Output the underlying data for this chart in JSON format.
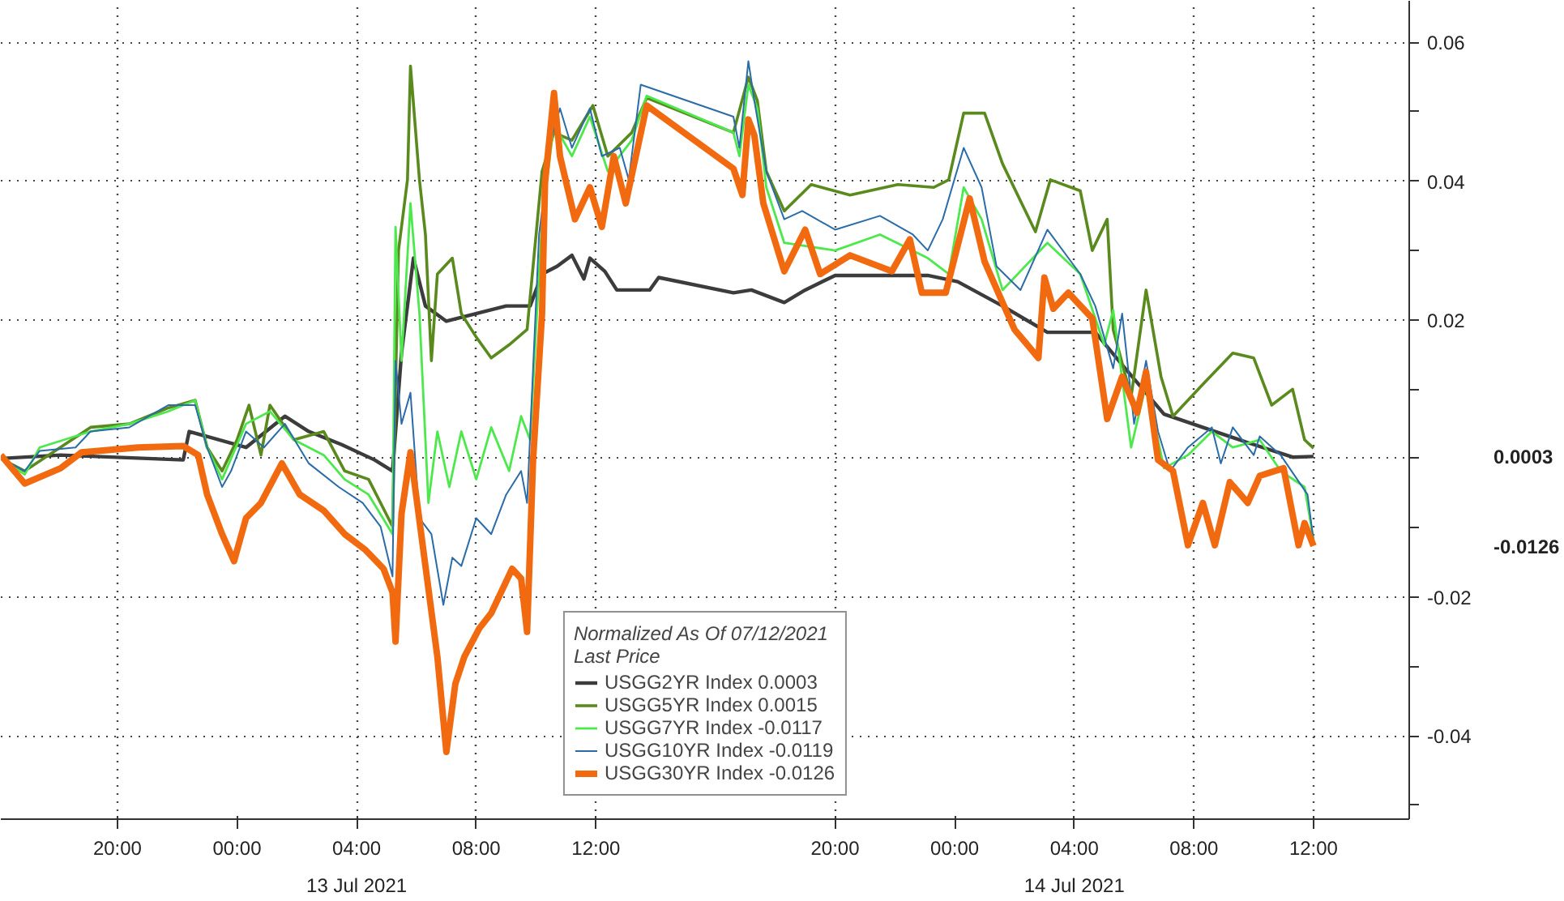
{
  "chart_data": {
    "type": "line",
    "legend_title": "Normalized As Of 07/12/2021\nLast Price",
    "legend": "bottom",
    "grid": true,
    "line_style": "solid",
    "xlim": [
      "2021-07-12T16:06",
      "2021-07-14T15:12"
    ],
    "xticks": [
      {
        "value": "2021-07-12T20:00",
        "label": "20:00"
      },
      {
        "value": "2021-07-13T00:00",
        "label": "00:00"
      },
      {
        "value": "2021-07-13T04:00",
        "label": "04:00"
      },
      {
        "value": "2021-07-13T08:00",
        "label": "08:00"
      },
      {
        "value": "2021-07-13T12:00",
        "label": "12:00"
      },
      {
        "value": "2021-07-13T20:00",
        "label": "20:00"
      },
      {
        "value": "2021-07-14T00:00",
        "label": "00:00"
      },
      {
        "value": "2021-07-14T04:00",
        "label": "04:00"
      },
      {
        "value": "2021-07-14T08:00",
        "label": "08:00"
      },
      {
        "value": "2021-07-14T12:00",
        "label": "12:00"
      }
    ],
    "ylim": [
      -0.052,
      0.066
    ],
    "yticks": [
      {
        "value": -0.05,
        "label": null
      },
      {
        "value": -0.04,
        "label": "-0.04"
      },
      {
        "value": -0.03,
        "label": null
      },
      {
        "value": -0.02,
        "label": "-0.02"
      },
      {
        "value": -0.01,
        "label": null
      },
      {
        "value": 0,
        "label": null
      },
      {
        "value": 0.01,
        "label": null
      },
      {
        "value": 0.02,
        "label": "0.02"
      },
      {
        "value": 0.03,
        "label": null
      },
      {
        "value": 0.04,
        "label": "0.04"
      },
      {
        "value": 0.05,
        "label": null
      },
      {
        "value": 0.06,
        "label": "0.06"
      }
    ],
    "annotations": [
      "13 Jul 2021",
      "14 Jul 2021",
      "0.0003",
      "-0.0126"
    ],
    "series": [
      {
        "name": "USGG2YR Index 0.0003",
        "color": "#3c3c3c",
        "x": [
          "2021-07-12T16:06",
          "2021-07-12T18:06",
          "2021-07-12T22:12",
          "2021-07-12T22:24",
          "2021-07-13T00:18",
          "2021-07-13T01:36",
          "2021-07-13T02:24",
          "2021-07-13T03:30",
          "2021-07-13T04:36",
          "2021-07-13T05:12",
          "2021-07-13T05:30",
          "2021-07-13T05:54",
          "2021-07-13T06:18",
          "2021-07-13T07:00",
          "2021-07-13T09:00",
          "2021-07-13T09:48",
          "2021-07-13T10:12",
          "2021-07-13T10:42",
          "2021-07-13T11:12",
          "2021-07-13T11:36",
          "2021-07-13T11:48",
          "2021-07-13T12:18",
          "2021-07-13T12:42",
          "2021-07-13T13:48",
          "2021-07-13T14:06",
          "2021-07-13T16:36",
          "2021-07-13T17:12",
          "2021-07-13T18:18",
          "2021-07-13T19:00",
          "2021-07-13T20:00",
          "2021-07-13T23:06",
          "2021-07-14T00:06",
          "2021-07-14T01:36",
          "2021-07-14T03:06",
          "2021-07-14T04:42",
          "2021-07-14T05:42",
          "2021-07-14T07:00",
          "2021-07-14T09:48",
          "2021-07-14T11:18",
          "2021-07-14T12:00"
        ],
        "values": [
          0,
          0.0005,
          -0.0002,
          0.0039,
          0.0016,
          0.0061,
          0.0039,
          0.002,
          -0.0002,
          -0.0018,
          0.0152,
          0.0289,
          0.022,
          0.0198,
          0.022,
          0.022,
          0.0266,
          0.0277,
          0.0293,
          0.0259,
          0.0289,
          0.027,
          0.0243,
          0.0243,
          0.0261,
          0.0239,
          0.0243,
          0.0225,
          0.0243,
          0.0264,
          0.0264,
          0.0255,
          0.022,
          0.0182,
          0.0182,
          0.013,
          0.0064,
          0.0023,
          0.0002,
          0.0003
        ]
      },
      {
        "name": "USGG5YR Index 0.0015",
        "color": "#5a8a1e",
        "x": [
          "2021-07-12T16:06",
          "2021-07-12T16:54",
          "2021-07-12T19:06",
          "2021-07-12T20:24",
          "2021-07-12T21:42",
          "2021-07-12T22:36",
          "2021-07-12T23:00",
          "2021-07-12T23:30",
          "2021-07-13T00:00",
          "2021-07-13T00:24",
          "2021-07-13T00:48",
          "2021-07-13T01:06",
          "2021-07-13T01:54",
          "2021-07-13T02:54",
          "2021-07-13T03:36",
          "2021-07-13T04:24",
          "2021-07-13T05:12",
          "2021-07-13T05:24",
          "2021-07-13T05:42",
          "2021-07-13T05:48",
          "2021-07-13T06:06",
          "2021-07-13T06:18",
          "2021-07-13T06:30",
          "2021-07-13T06:42",
          "2021-07-13T07:12",
          "2021-07-13T07:30",
          "2021-07-13T08:00",
          "2021-07-13T08:30",
          "2021-07-13T09:06",
          "2021-07-13T09:42",
          "2021-07-13T10:12",
          "2021-07-13T10:36",
          "2021-07-13T11:12",
          "2021-07-13T11:54",
          "2021-07-13T12:24",
          "2021-07-13T13:12",
          "2021-07-13T13:42",
          "2021-07-13T16:36",
          "2021-07-13T17:06",
          "2021-07-13T17:24",
          "2021-07-13T17:42",
          "2021-07-13T18:18",
          "2021-07-13T19:12",
          "2021-07-13T20:30",
          "2021-07-13T22:06",
          "2021-07-13T23:18",
          "2021-07-13T23:48",
          "2021-07-14T00:18",
          "2021-07-14T01:00",
          "2021-07-14T01:36",
          "2021-07-14T02:42",
          "2021-07-14T03:12",
          "2021-07-14T04:12",
          "2021-07-14T04:36",
          "2021-07-14T05:06",
          "2021-07-14T05:18",
          "2021-07-14T05:54",
          "2021-07-14T06:24",
          "2021-07-14T06:54",
          "2021-07-14T07:18",
          "2021-07-14T08:18",
          "2021-07-14T09:18",
          "2021-07-14T10:00",
          "2021-07-14T10:36",
          "2021-07-14T11:18",
          "2021-07-14T11:42",
          "2021-07-14T12:00"
        ],
        "values": [
          0,
          -0.0018,
          0.0045,
          0.005,
          0.0073,
          0.0084,
          0.0016,
          -0.0018,
          0.0027,
          0.0077,
          0.0005,
          0.0077,
          0.0027,
          0.0039,
          -0.0018,
          -0.003,
          -0.0098,
          0.03,
          0.0402,
          0.0566,
          0.0402,
          0.0323,
          0.0141,
          0.0266,
          0.0289,
          0.0209,
          0.0175,
          0.0145,
          0.0164,
          0.0186,
          0.0414,
          0.047,
          0.0459,
          0.0509,
          0.0436,
          0.047,
          0.052,
          0.047,
          0.055,
          0.0516,
          0.0414,
          0.0357,
          0.0395,
          0.038,
          0.0395,
          0.0391,
          0.0402,
          0.0498,
          0.0498,
          0.0425,
          0.0327,
          0.0402,
          0.0386,
          0.03,
          0.0345,
          0.0186,
          0.0089,
          0.0243,
          0.0118,
          0.0061,
          0.0107,
          0.0152,
          0.0145,
          0.0077,
          0.01,
          0.0027,
          0.0015
        ]
      },
      {
        "name": "USGG7YR Index -0.0117",
        "color": "#4ce84c",
        "x": [
          "2021-07-12T16:06",
          "2021-07-12T16:54",
          "2021-07-12T17:24",
          "2021-07-12T19:06",
          "2021-07-12T20:24",
          "2021-07-12T21:42",
          "2021-07-12T22:36",
          "2021-07-12T23:00",
          "2021-07-12T23:30",
          "2021-07-13T00:18",
          "2021-07-13T01:06",
          "2021-07-13T01:54",
          "2021-07-13T02:54",
          "2021-07-13T03:36",
          "2021-07-13T04:24",
          "2021-07-13T05:12",
          "2021-07-13T05:18",
          "2021-07-13T05:30",
          "2021-07-13T05:48",
          "2021-07-13T06:06",
          "2021-07-13T06:24",
          "2021-07-13T06:42",
          "2021-07-13T07:06",
          "2021-07-13T07:30",
          "2021-07-13T08:00",
          "2021-07-13T08:30",
          "2021-07-13T09:06",
          "2021-07-13T09:30",
          "2021-07-13T09:48",
          "2021-07-13T10:12",
          "2021-07-13T10:36",
          "2021-07-13T11:12",
          "2021-07-13T11:48",
          "2021-07-13T12:24",
          "2021-07-13T13:12",
          "2021-07-13T13:42",
          "2021-07-13T16:36",
          "2021-07-13T16:48",
          "2021-07-13T17:06",
          "2021-07-13T17:24",
          "2021-07-13T17:42",
          "2021-07-13T18:18",
          "2021-07-13T20:00",
          "2021-07-13T21:30",
          "2021-07-13T23:06",
          "2021-07-13T23:48",
          "2021-07-14T00:18",
          "2021-07-14T00:54",
          "2021-07-14T01:36",
          "2021-07-14T03:06",
          "2021-07-14T04:12",
          "2021-07-14T05:00",
          "2021-07-14T05:18",
          "2021-07-14T05:54",
          "2021-07-14T06:24",
          "2021-07-14T07:00",
          "2021-07-14T07:48",
          "2021-07-14T08:36",
          "2021-07-14T09:18",
          "2021-07-14T10:12",
          "2021-07-14T10:54",
          "2021-07-14T11:42",
          "2021-07-14T12:00"
        ],
        "values": [
          0,
          -0.0023,
          0.0016,
          0.0039,
          0.005,
          0.0068,
          0.0084,
          0.0016,
          -0.003,
          0.005,
          0.0068,
          0.0027,
          0.0005,
          -0.003,
          -0.0052,
          -0.0109,
          0.0334,
          0.0141,
          0.0368,
          0.0209,
          -0.0064,
          0.0039,
          -0.0041,
          0.0039,
          -0.003,
          0.0045,
          -0.0018,
          0.0061,
          0.0027,
          0.0345,
          0.0482,
          0.0436,
          0.0493,
          0.0414,
          0.0459,
          0.0523,
          0.047,
          0.0436,
          0.0539,
          0.0505,
          0.0391,
          0.0311,
          0.03,
          0.0323,
          0.0289,
          0.0266,
          0.0391,
          0.0345,
          0.0243,
          0.0311,
          0.0266,
          0.0164,
          0.0214,
          0.0016,
          0.0107,
          -0.0014,
          0.0005,
          0.0039,
          0.0016,
          0.0027,
          -0.0018,
          -0.0041,
          -0.0117
        ]
      },
      {
        "name": "USGG10YR Index -0.0119",
        "color": "#2b6ca8",
        "x": [
          "2021-07-12T16:06",
          "2021-07-12T16:54",
          "2021-07-12T17:24",
          "2021-07-12T18:36",
          "2021-07-12T19:06",
          "2021-07-12T20:24",
          "2021-07-12T21:42",
          "2021-07-12T22:36",
          "2021-07-12T23:00",
          "2021-07-12T23:30",
          "2021-07-12T23:48",
          "2021-07-13T00:18",
          "2021-07-13T00:54",
          "2021-07-13T01:36",
          "2021-07-13T02:24",
          "2021-07-13T03:24",
          "2021-07-13T04:12",
          "2021-07-13T04:48",
          "2021-07-13T05:12",
          "2021-07-13T05:18",
          "2021-07-13T05:30",
          "2021-07-13T05:48",
          "2021-07-13T06:06",
          "2021-07-13T06:30",
          "2021-07-13T06:54",
          "2021-07-13T07:12",
          "2021-07-13T07:30",
          "2021-07-13T08:00",
          "2021-07-13T08:30",
          "2021-07-13T09:00",
          "2021-07-13T09:30",
          "2021-07-13T09:42",
          "2021-07-13T10:06",
          "2021-07-13T10:30",
          "2021-07-13T10:48",
          "2021-07-13T11:12",
          "2021-07-13T11:48",
          "2021-07-13T12:12",
          "2021-07-13T12:48",
          "2021-07-13T13:06",
          "2021-07-13T13:30",
          "2021-07-13T16:36",
          "2021-07-13T16:48",
          "2021-07-13T17:06",
          "2021-07-13T17:18",
          "2021-07-13T17:42",
          "2021-07-13T18:18",
          "2021-07-13T18:54",
          "2021-07-13T20:00",
          "2021-07-13T21:30",
          "2021-07-13T22:36",
          "2021-07-13T23:06",
          "2021-07-13T23:36",
          "2021-07-14T00:18",
          "2021-07-14T00:54",
          "2021-07-14T01:24",
          "2021-07-14T02:12",
          "2021-07-14T03:06",
          "2021-07-14T04:12",
          "2021-07-14T04:42",
          "2021-07-14T05:18",
          "2021-07-14T05:36",
          "2021-07-14T06:00",
          "2021-07-14T06:24",
          "2021-07-14T06:48",
          "2021-07-14T07:12",
          "2021-07-14T07:48",
          "2021-07-14T08:36",
          "2021-07-14T08:54",
          "2021-07-14T09:18",
          "2021-07-14T10:00",
          "2021-07-14T10:12",
          "2021-07-14T10:54",
          "2021-07-14T11:48",
          "2021-07-14T12:00"
        ],
        "values": [
          0,
          -0.0018,
          0.0011,
          0.0016,
          0.0039,
          0.0045,
          0.0077,
          0.0077,
          0.0016,
          -0.0041,
          -0.0018,
          0.0039,
          0.0016,
          0.005,
          -0.0007,
          -0.0041,
          -0.0064,
          -0.0098,
          -0.017,
          0.0141,
          0.005,
          0.0095,
          -0.0086,
          -0.0109,
          -0.0211,
          -0.0143,
          -0.0155,
          -0.0086,
          -0.0109,
          -0.0052,
          -0.0018,
          -0.0064,
          0.0323,
          0.0459,
          0.0505,
          0.0448,
          0.0505,
          0.0436,
          0.0448,
          0.0402,
          0.0539,
          0.0493,
          0.0448,
          0.0573,
          0.0516,
          0.0414,
          0.0345,
          0.0357,
          0.033,
          0.035,
          0.0323,
          0.03,
          0.0345,
          0.0448,
          0.0391,
          0.0277,
          0.0243,
          0.033,
          0.0266,
          0.022,
          0.013,
          0.0209,
          0.005,
          0.0141,
          0.0039,
          -0.0018,
          0.0016,
          0.0045,
          -0.0007,
          0.0045,
          0.0005,
          0.0032,
          0.0005,
          -0.0052,
          -0.0119
        ]
      },
      {
        "name": "USGG30YR Index -0.0126",
        "color": "#f26a10",
        "x": [
          "2021-07-12T16:06",
          "2021-07-12T16:54",
          "2021-07-12T18:06",
          "2021-07-12T18:48",
          "2021-07-12T20:42",
          "2021-07-12T22:12",
          "2021-07-12T22:42",
          "2021-07-12T23:00",
          "2021-07-12T23:30",
          "2021-07-12T23:54",
          "2021-07-13T00:18",
          "2021-07-13T00:48",
          "2021-07-13T01:30",
          "2021-07-13T02:06",
          "2021-07-13T02:54",
          "2021-07-13T03:36",
          "2021-07-13T04:18",
          "2021-07-13T04:54",
          "2021-07-13T05:12",
          "2021-07-13T05:18",
          "2021-07-13T05:30",
          "2021-07-13T05:48",
          "2021-07-13T06:18",
          "2021-07-13T06:42",
          "2021-07-13T07:00",
          "2021-07-13T07:18",
          "2021-07-13T07:36",
          "2021-07-13T08:06",
          "2021-07-13T08:30",
          "2021-07-13T09:12",
          "2021-07-13T09:30",
          "2021-07-13T09:42",
          "2021-07-13T09:54",
          "2021-07-13T10:12",
          "2021-07-13T10:18",
          "2021-07-13T10:36",
          "2021-07-13T10:48",
          "2021-07-13T11:18",
          "2021-07-13T11:48",
          "2021-07-13T12:12",
          "2021-07-13T12:36",
          "2021-07-13T13:00",
          "2021-07-13T13:42",
          "2021-07-13T16:36",
          "2021-07-13T16:54",
          "2021-07-13T17:06",
          "2021-07-13T17:18",
          "2021-07-13T17:36",
          "2021-07-13T18:18",
          "2021-07-13T19:00",
          "2021-07-13T19:30",
          "2021-07-13T20:30",
          "2021-07-13T21:54",
          "2021-07-13T22:30",
          "2021-07-13T22:54",
          "2021-07-13T23:42",
          "2021-07-14T00:30",
          "2021-07-14T01:00",
          "2021-07-14T01:36",
          "2021-07-14T02:00",
          "2021-07-14T02:48",
          "2021-07-14T03:00",
          "2021-07-14T03:18",
          "2021-07-14T03:48",
          "2021-07-14T04:36",
          "2021-07-14T05:06",
          "2021-07-14T05:36",
          "2021-07-14T06:06",
          "2021-07-14T06:24",
          "2021-07-14T06:48",
          "2021-07-14T07:18",
          "2021-07-14T07:48",
          "2021-07-14T08:18",
          "2021-07-14T08:42",
          "2021-07-14T09:12",
          "2021-07-14T09:48",
          "2021-07-14T10:12",
          "2021-07-14T11:00",
          "2021-07-14T11:30",
          "2021-07-14T11:42",
          "2021-07-14T12:00"
        ],
        "values": [
          0.0005,
          -0.0036,
          -0.0014,
          0.0009,
          0.0016,
          0.0018,
          0.0005,
          -0.0052,
          -0.0109,
          -0.0148,
          -0.0086,
          -0.0064,
          -0.0007,
          -0.0052,
          -0.0075,
          -0.0109,
          -0.0132,
          -0.0159,
          -0.0193,
          -0.0264,
          -0.008,
          0.0009,
          -0.0155,
          -0.0286,
          -0.0423,
          -0.0325,
          -0.0286,
          -0.0245,
          -0.0223,
          -0.0159,
          -0.0173,
          -0.025,
          -0.0002,
          0.0209,
          0.0398,
          0.0527,
          0.0436,
          0.0345,
          0.0391,
          0.0334,
          0.0436,
          0.0368,
          0.0509,
          0.0418,
          0.038,
          0.0489,
          0.0466,
          0.0368,
          0.027,
          0.033,
          0.0266,
          0.0293,
          0.027,
          0.0316,
          0.0239,
          0.0239,
          0.0375,
          0.0284,
          0.0225,
          0.0186,
          0.0145,
          0.0261,
          0.0216,
          0.0239,
          0.0202,
          0.0057,
          0.0118,
          0.0066,
          0.0125,
          -0.0002,
          -0.0018,
          -0.0125,
          -0.0064,
          -0.0125,
          -0.0034,
          -0.0064,
          -0.0025,
          -0.0014,
          -0.0125,
          -0.0093,
          -0.0126
        ]
      }
    ]
  }
}
